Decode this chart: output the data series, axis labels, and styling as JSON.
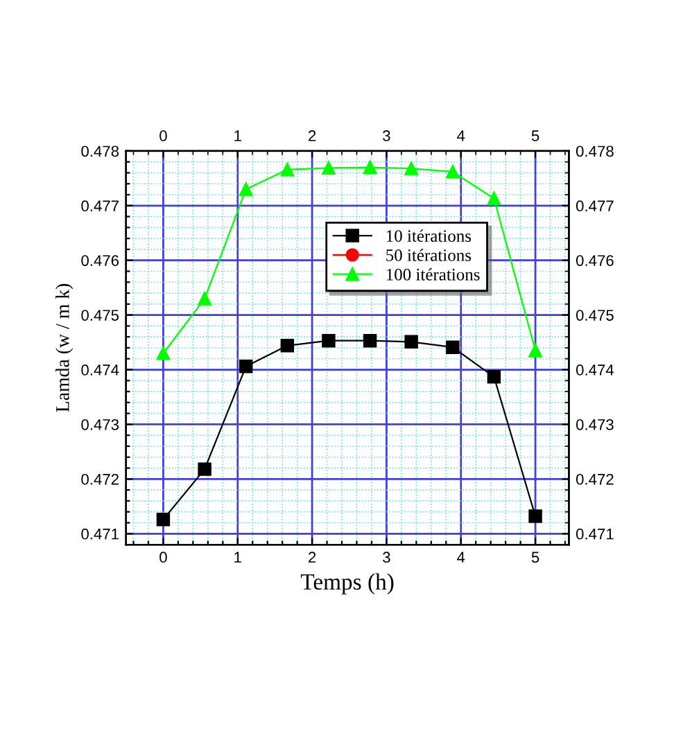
{
  "chart_data": {
    "type": "line",
    "xlabel": "Temps (h)",
    "ylabel": "Lamda (w / m k)",
    "x": [
      0,
      0.556,
      1.111,
      1.667,
      2.222,
      2.778,
      3.333,
      3.889,
      4.444,
      5
    ],
    "series": [
      {
        "name": "10 itérations",
        "color": "#000000",
        "marker": "square",
        "values": [
          0.47126,
          0.47218,
          0.47406,
          0.47444,
          0.47453,
          0.47453,
          0.47451,
          0.47441,
          0.47387,
          0.47132
        ]
      },
      {
        "name": "50 itérations",
        "color": "#ff0000",
        "marker": "circle",
        "values": [
          null,
          null,
          null,
          null,
          null,
          null,
          null,
          null,
          null,
          null
        ]
      },
      {
        "name": "100 itérations",
        "color": "#00ff00",
        "marker": "triangle",
        "values": [
          0.4743,
          0.4753,
          0.4773,
          0.47766,
          0.47769,
          0.4777,
          0.47768,
          0.47762,
          0.47713,
          0.47435
        ]
      }
    ],
    "xlim": [
      -0.5,
      5.45
    ],
    "xticks": [
      {
        "value": -0.4,
        "label": null
      },
      {
        "value": -0.2,
        "label": null
      },
      0,
      {
        "value": 0.2,
        "label": null
      },
      {
        "value": 0.4,
        "label": null
      },
      {
        "value": 0.6,
        "label": null
      },
      {
        "value": 0.8,
        "label": null
      },
      1,
      {
        "value": 1.2,
        "label": null
      },
      {
        "value": 1.4,
        "label": null
      },
      {
        "value": 1.6,
        "label": null
      },
      {
        "value": 1.8,
        "label": null
      },
      2,
      {
        "value": 2.2,
        "label": null
      },
      {
        "value": 2.4,
        "label": null
      },
      {
        "value": 2.6,
        "label": null
      },
      {
        "value": 2.8,
        "label": null
      },
      3,
      {
        "value": 3.2,
        "label": null
      },
      {
        "value": 3.4,
        "label": null
      },
      {
        "value": 3.6,
        "label": null
      },
      {
        "value": 3.8,
        "label": null
      },
      4,
      {
        "value": 4.2,
        "label": null
      },
      {
        "value": 4.4,
        "label": null
      },
      {
        "value": 4.6,
        "label": null
      },
      {
        "value": 4.8,
        "label": null
      },
      5,
      {
        "value": 5.2,
        "label": null
      },
      {
        "value": 5.4,
        "label": null
      }
    ],
    "x2lim": [
      -0.5,
      5.45
    ],
    "x2ticks": [
      0,
      1,
      2,
      3,
      4,
      5
    ],
    "ylim": [
      0.4708,
      0.478
    ],
    "yticks": [
      {
        "value": 0.471,
        "label": "0.471"
      },
      {
        "value": 0.4712,
        "label": null
      },
      {
        "value": 0.4714,
        "label": null
      },
      {
        "value": 0.4716,
        "label": null
      },
      {
        "value": 0.4718,
        "label": null
      },
      0.472,
      {
        "value": 0.4722,
        "label": null
      },
      {
        "value": 0.4724,
        "label": null
      },
      {
        "value": 0.4726,
        "label": null
      },
      {
        "value": 0.4728,
        "label": null
      },
      0.473,
      {
        "value": 0.4732,
        "label": null
      },
      {
        "value": 0.4734,
        "label": null
      },
      {
        "value": 0.4736,
        "label": null
      },
      {
        "value": 0.4738,
        "label": null
      },
      0.474,
      {
        "value": 0.4742,
        "label": null
      },
      {
        "value": 0.4744,
        "label": null
      },
      {
        "value": 0.4746,
        "label": null
      },
      {
        "value": 0.4748,
        "label": null
      },
      0.475,
      {
        "value": 0.4752,
        "label": null
      },
      {
        "value": 0.4754,
        "label": null
      },
      {
        "value": 0.4756,
        "label": null
      },
      {
        "value": 0.4758,
        "label": null
      },
      0.476,
      {
        "value": 0.4762,
        "label": null
      },
      {
        "value": 0.4764,
        "label": null
      },
      {
        "value": 0.4766,
        "label": null
      },
      {
        "value": 0.4768,
        "label": null
      },
      0.477,
      {
        "value": 0.4772,
        "label": null
      },
      {
        "value": 0.4774,
        "label": null
      },
      {
        "value": 0.4776,
        "label": null
      },
      {
        "value": 0.4778,
        "label": null
      },
      0.478
    ],
    "y2lim": [
      0.4708,
      0.478
    ],
    "y2ticks": [
      0.471,
      0.472,
      0.473,
      0.474,
      0.475,
      0.476,
      0.477,
      0.478
    ],
    "grid": true,
    "legend": "top right",
    "line_style": "solid"
  }
}
